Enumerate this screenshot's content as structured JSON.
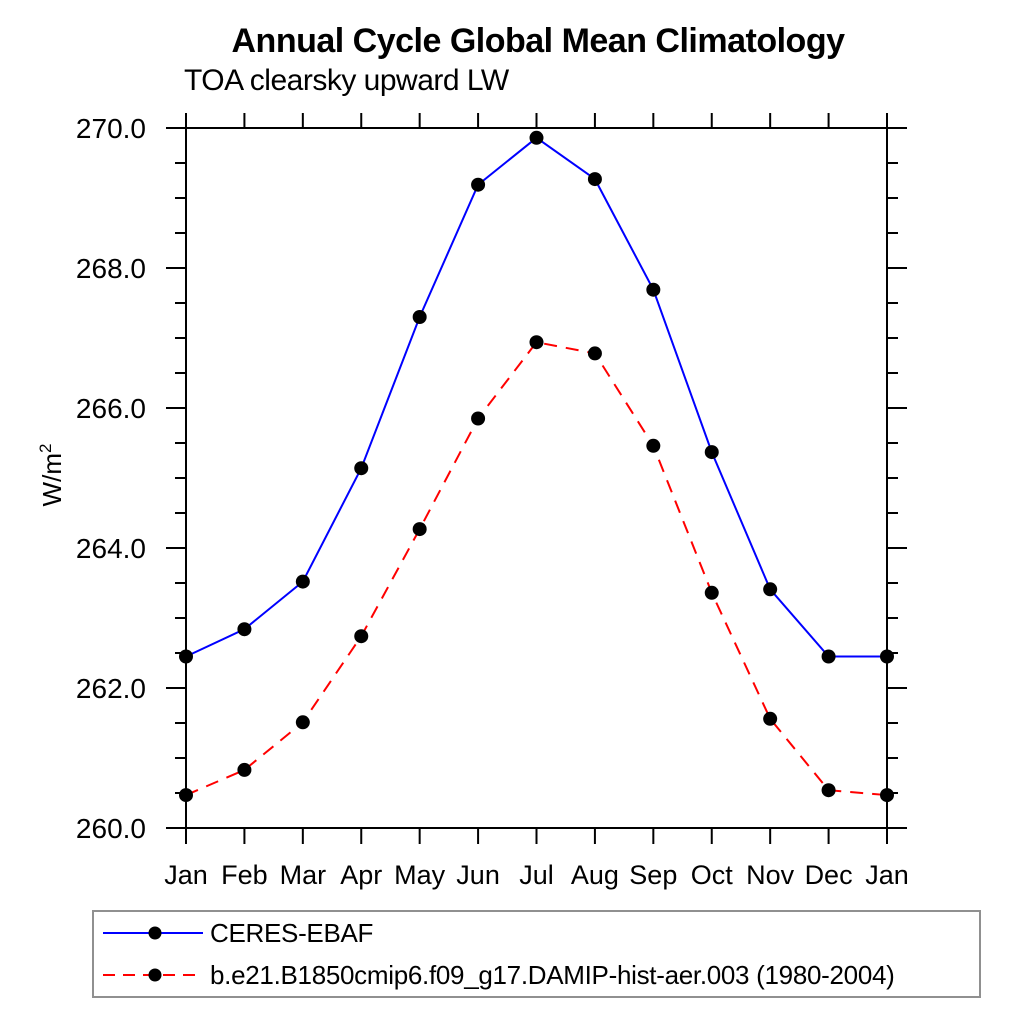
{
  "title": "Annual Cycle Global Mean Climatology",
  "subtitle": "TOA clearsky upward LW",
  "y_axis": {
    "label_base": "W/m",
    "label_sup": "2"
  },
  "chart_data": {
    "type": "line",
    "categories": [
      "Jan",
      "Feb",
      "Mar",
      "Apr",
      "May",
      "Jun",
      "Jul",
      "Aug",
      "Sep",
      "Oct",
      "Nov",
      "Dec",
      "Jan"
    ],
    "series": [
      {
        "name": "CERES-EBAF",
        "color": "#0000ff",
        "line_style": "solid",
        "marker": "filled-circle",
        "marker_color": "#000000",
        "values": [
          262.45,
          262.84,
          263.52,
          265.14,
          267.3,
          269.19,
          269.86,
          269.27,
          267.69,
          265.37,
          263.41,
          262.45,
          262.45
        ]
      },
      {
        "name": "b.e21.B1850cmip6.f09_g17.DAMIP-hist-aer.003 (1980-2004)",
        "color": "#ff0000",
        "line_style": "dashed",
        "marker": "filled-circle",
        "marker_color": "#000000",
        "values": [
          260.47,
          260.83,
          261.51,
          262.74,
          264.27,
          265.85,
          266.94,
          266.78,
          265.46,
          263.36,
          261.56,
          260.54,
          260.47
        ]
      }
    ],
    "xlabel": "",
    "ylabel": "W/m²",
    "ylim": [
      260.0,
      270.0
    ],
    "y_major_ticks": [
      260.0,
      262.0,
      264.0,
      266.0,
      268.0,
      270.0
    ],
    "y_minor_step": 0.5,
    "grid": false,
    "legend_position": "bottom-left-box"
  }
}
